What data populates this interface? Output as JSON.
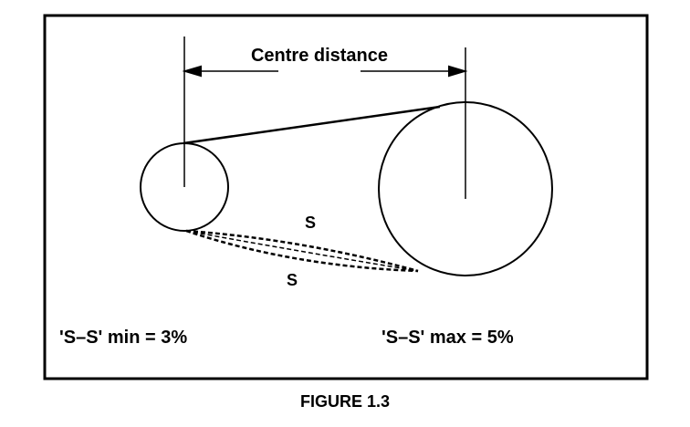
{
  "diagram": {
    "dimension_label": "Centre distance",
    "sag_labels": [
      "S",
      "S"
    ],
    "min_note": "'S–S' min = 3%",
    "max_note": "'S–S' max = 5%"
  },
  "caption": "FIGURE 1.3"
}
